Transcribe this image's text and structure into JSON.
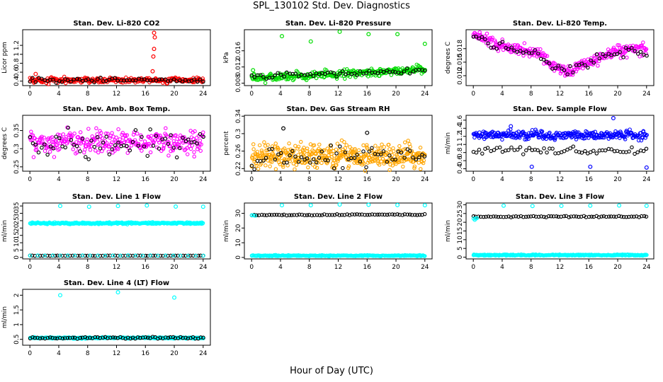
{
  "page": {
    "title": "SPL_130102  Std. Dev. Diagnostics",
    "xlabel": "Hour of Day (UTC)"
  },
  "chart_data": [
    {
      "type": "scatter",
      "title": "Stan. Dev. Li-820 CO2",
      "ylabel": "Licor ppm",
      "xlim": [
        -1,
        25
      ],
      "ylim": [
        0.3,
        1.55
      ],
      "xticks": [
        0,
        4,
        8,
        12,
        16,
        20,
        24
      ],
      "yticks": [
        0.4,
        0.6,
        0.8,
        1.0,
        1.2
      ],
      "grid": false,
      "main_color": "#ff0000",
      "series": [
        {
          "color": "#ff0000",
          "x_range": [
            0,
            24
          ],
          "count": 300,
          "base": 0.42,
          "spread": 0.05,
          "outliers": [
            {
              "x": 0.8,
              "y": 0.56
            },
            {
              "x": 17.2,
              "y": 1.48
            },
            {
              "x": 17.3,
              "y": 1.38
            },
            {
              "x": 17.2,
              "y": 1.12
            },
            {
              "x": 17.1,
              "y": 0.95
            },
            {
              "x": 17.0,
              "y": 0.62
            }
          ]
        },
        {
          "color": "#000000",
          "x_range": [
            0,
            24
          ],
          "count": 60,
          "base": 0.42,
          "spread": 0.04
        }
      ]
    },
    {
      "type": "scatter",
      "title": "Stan. Dev. Li-820 Pressure",
      "ylabel": "kPa",
      "xlim": [
        -1,
        25
      ],
      "ylim": [
        0.0074,
        0.0212
      ],
      "xticks": [
        0,
        4,
        8,
        12,
        16,
        20,
        24
      ],
      "yticks": [
        0.008,
        0.012,
        0.016
      ],
      "grid": false,
      "main_color": "#00dd00",
      "series": [
        {
          "color": "#00dd00",
          "x_range": [
            0,
            24
          ],
          "count": 300,
          "base": 0.0092,
          "trend": 0.0022,
          "spread": 0.0008,
          "outliers": [
            {
              "x": 0.2,
              "y": 0.0112
            },
            {
              "x": 4.2,
              "y": 0.0196
            },
            {
              "x": 8.2,
              "y": 0.0183
            },
            {
              "x": 12.2,
              "y": 0.0207
            },
            {
              "x": 16.2,
              "y": 0.0201
            },
            {
              "x": 20.2,
              "y": 0.0201
            },
            {
              "x": 24.0,
              "y": 0.0177
            }
          ]
        },
        {
          "color": "#000000",
          "x_range": [
            0,
            24
          ],
          "count": 60,
          "base": 0.0095,
          "trend": 0.0018,
          "spread": 0.0006
        }
      ]
    },
    {
      "type": "scatter",
      "title": "Stan. Dev. Li-820 Temp.",
      "ylabel": "degrees C",
      "xlim": [
        -1,
        25
      ],
      "ylim": [
        0.0098,
        0.0222
      ],
      "xticks": [
        0,
        4,
        8,
        12,
        16,
        20,
        24
      ],
      "yticks": [
        0.012,
        0.015,
        0.018
      ],
      "grid": false,
      "main_color": "#ff00ff",
      "series": [
        {
          "color": "#ff00ff",
          "x_range": [
            0,
            24
          ],
          "count": 300,
          "profile": [
            [
              0,
              0.0212
            ],
            [
              3,
              0.019
            ],
            [
              6,
              0.0178
            ],
            [
              9,
              0.017
            ],
            [
              11,
              0.0142
            ],
            [
              13,
              0.0128
            ],
            [
              15,
              0.0143
            ],
            [
              18,
              0.0162
            ],
            [
              20,
              0.0175
            ],
            [
              24,
              0.018
            ]
          ],
          "spread": 0.0011
        },
        {
          "color": "#000000",
          "x_range": [
            0,
            24
          ],
          "count": 60,
          "profile": [
            [
              0,
              0.0205
            ],
            [
              3,
              0.0185
            ],
            [
              6,
              0.0175
            ],
            [
              9,
              0.0168
            ],
            [
              11,
              0.0145
            ],
            [
              13,
              0.013
            ],
            [
              15,
              0.0145
            ],
            [
              18,
              0.016
            ],
            [
              20,
              0.0172
            ],
            [
              24,
              0.0172
            ]
          ],
          "spread": 0.0009
        }
      ]
    },
    {
      "type": "scatter",
      "title": "Stan. Dev. Amb. Box Temp.",
      "ylabel": "degrees C",
      "xlim": [
        -1,
        25
      ],
      "ylim": [
        0.238,
        0.392
      ],
      "xticks": [
        0,
        4,
        8,
        12,
        16,
        20,
        24
      ],
      "yticks": [
        0.25,
        0.3,
        0.35
      ],
      "grid": false,
      "main_color": "#ff00ff",
      "series": [
        {
          "color": "#ff00ff",
          "x_range": [
            0,
            24
          ],
          "count": 300,
          "base": 0.318,
          "spread": 0.028
        },
        {
          "color": "#000000",
          "x_range": [
            0,
            24
          ],
          "count": 60,
          "base": 0.312,
          "spread": 0.032
        }
      ]
    },
    {
      "type": "scatter",
      "title": "Stan. Dev. Gas Stream RH",
      "ylabel": "percent",
      "xlim": [
        -1,
        25
      ],
      "ylim": [
        0.214,
        0.342
      ],
      "xticks": [
        0,
        4,
        8,
        12,
        16,
        20,
        24
      ],
      "yticks": [
        0.22,
        0.26,
        0.3,
        0.34
      ],
      "grid": false,
      "main_color": "#ffa500",
      "series": [
        {
          "color": "#ffa500",
          "x_range": [
            0,
            24
          ],
          "count": 420,
          "base": 0.25,
          "spread": 0.022
        },
        {
          "color": "#000000",
          "x_range": [
            0,
            24
          ],
          "count": 60,
          "base": 0.245,
          "spread": 0.02,
          "outliers": [
            {
              "x": 4.4,
              "y": 0.312
            },
            {
              "x": 16.0,
              "y": 0.302
            }
          ]
        }
      ]
    },
    {
      "type": "scatter",
      "title": "Stan. Dev. Sample Flow",
      "ylabel": "ml/min",
      "xlim": [
        -1,
        25
      ],
      "ylim": [
        0.34,
        1.72
      ],
      "xticks": [
        0,
        4,
        8,
        12,
        16,
        20,
        24
      ],
      "yticks": [
        0.4,
        0.6,
        0.8,
        1.0,
        1.2,
        1.4,
        1.6
      ],
      "grid": false,
      "main_color": "#0000ff",
      "series": [
        {
          "color": "#0000ff",
          "x_range": [
            0,
            24
          ],
          "count": 300,
          "base": 1.23,
          "spread": 0.09,
          "outliers": [
            {
              "x": 5.2,
              "y": 1.45
            },
            {
              "x": 8.1,
              "y": 0.45
            },
            {
              "x": 16.2,
              "y": 0.45
            },
            {
              "x": 19.4,
              "y": 1.65
            },
            {
              "x": 24.0,
              "y": 0.43
            }
          ]
        },
        {
          "color": "#000000",
          "x_range": [
            0,
            24
          ],
          "count": 60,
          "base": 0.85,
          "spread": 0.07
        }
      ]
    },
    {
      "type": "scatter",
      "title": "Stan. Dev. Line 1 Flow",
      "ylabel": "ml/min",
      "xlim": [
        -1,
        25
      ],
      "ylim": [
        -1,
        37
      ],
      "xticks": [
        0,
        4,
        8,
        12,
        16,
        20,
        24
      ],
      "yticks": [
        0,
        5,
        10,
        15,
        20,
        25,
        30,
        35
      ],
      "grid": false,
      "main_color": "#00ffff",
      "series": [
        {
          "color": "#00ffff",
          "x_range": [
            0,
            24
          ],
          "count": 300,
          "base": 23.3,
          "spread": 0.5,
          "outliers": [
            {
              "x": 4.2,
              "y": 35.0
            },
            {
              "x": 8.2,
              "y": 34.5
            },
            {
              "x": 12.2,
              "y": 35.0
            },
            {
              "x": 16.2,
              "y": 35.3
            },
            {
              "x": 20.2,
              "y": 34.6
            },
            {
              "x": 24.0,
              "y": 34.5
            }
          ]
        },
        {
          "color": "#000000",
          "x_range": [
            0,
            24
          ],
          "count": 70,
          "base": 1.2,
          "spread": 0.1
        },
        {
          "color": "#00ffff",
          "x_range": [
            0,
            24
          ],
          "count": 24,
          "base": 1.3,
          "spread": 0.1
        }
      ]
    },
    {
      "type": "scatter",
      "title": "Stan. Dev. Line 2 Flow",
      "ylabel": "ml/min",
      "xlim": [
        -1,
        25
      ],
      "ylim": [
        -1,
        37
      ],
      "xticks": [
        0,
        4,
        8,
        12,
        16,
        20,
        24
      ],
      "yticks": [
        0,
        10,
        20,
        30
      ],
      "grid": false,
      "main_color": "#00ffff",
      "series": [
        {
          "color": "#00ffff",
          "x_range": [
            0,
            24
          ],
          "count": 300,
          "base": 1.2,
          "spread": 0.3,
          "outliers": [
            {
              "x": 4.2,
              "y": 35.5
            },
            {
              "x": 8.2,
              "y": 35.5
            },
            {
              "x": 12.2,
              "y": 36.0
            },
            {
              "x": 16.2,
              "y": 35.8
            },
            {
              "x": 20.2,
              "y": 35.6
            },
            {
              "x": 24.0,
              "y": 35.5
            }
          ]
        },
        {
          "color": "#000000",
          "x_range": [
            0,
            24
          ],
          "count": 70,
          "base": 28.8,
          "trend": 0.4,
          "spread": 0.3
        },
        {
          "color": "#00ffff",
          "x_range": [
            0,
            0.5
          ],
          "count": 3,
          "base": 28.5,
          "spread": 0.3
        }
      ]
    },
    {
      "type": "scatter",
      "title": "Stan. Dev. Line 3 Flow",
      "ylabel": "ml/min",
      "xlim": [
        -1,
        25
      ],
      "ylim": [
        -1,
        31
      ],
      "xticks": [
        0,
        4,
        8,
        12,
        16,
        20,
        24
      ],
      "yticks": [
        0,
        5,
        10,
        15,
        20,
        25,
        30
      ],
      "grid": false,
      "main_color": "#00ffff",
      "series": [
        {
          "color": "#00ffff",
          "x_range": [
            0,
            24
          ],
          "count": 300,
          "base": 1.2,
          "spread": 0.3,
          "outliers": [
            {
              "x": 4.2,
              "y": 29.5
            },
            {
              "x": 8.2,
              "y": 29.3
            },
            {
              "x": 12.2,
              "y": 29.4
            },
            {
              "x": 16.2,
              "y": 29.5
            },
            {
              "x": 20.2,
              "y": 29.6
            },
            {
              "x": 24.0,
              "y": 29.4
            }
          ]
        },
        {
          "color": "#000000",
          "x_range": [
            0,
            24
          ],
          "count": 70,
          "base": 23.2,
          "spread": 0.3
        },
        {
          "color": "#00ffff",
          "x_range": [
            0,
            0.5
          ],
          "count": 4,
          "base": 22.0,
          "spread": 0.6
        }
      ]
    },
    {
      "type": "scatter",
      "title": "Stan. Dev. Line 4 (LT) Flow",
      "ylabel": "ml/min",
      "xlim": [
        -1,
        25
      ],
      "ylim": [
        0.3,
        2.2
      ],
      "xticks": [
        0,
        4,
        8,
        12,
        16,
        20,
        24
      ],
      "yticks": [
        0.5,
        1.0,
        1.5,
        2.0
      ],
      "grid": false,
      "main_color": "#00ffff",
      "series": [
        {
          "color": "#00ffff",
          "x_range": [
            0,
            24
          ],
          "count": 300,
          "base": 0.55,
          "spread": 0.02,
          "outliers": [
            {
              "x": 4.2,
              "y": 2.0
            },
            {
              "x": 12.2,
              "y": 2.1
            },
            {
              "x": 20.0,
              "y": 1.92
            }
          ]
        },
        {
          "color": "#000000",
          "x_range": [
            0,
            24
          ],
          "count": 70,
          "base": 0.55,
          "spread": 0.03
        }
      ]
    }
  ]
}
